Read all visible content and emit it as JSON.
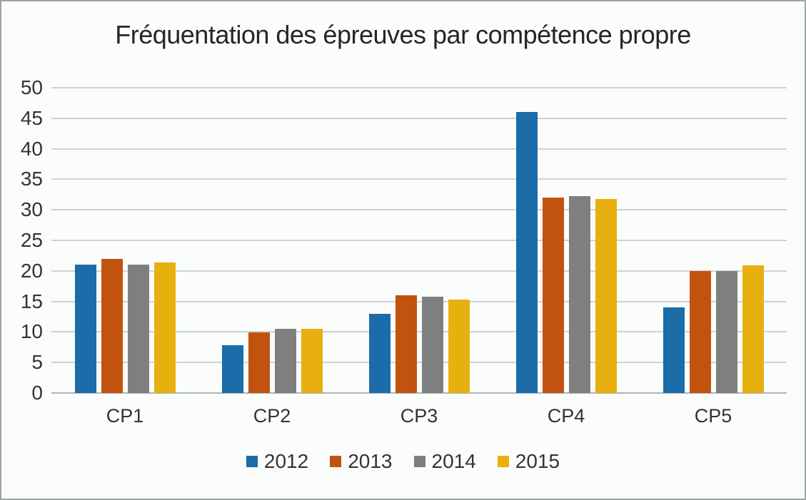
{
  "frame": {
    "background_color": "#fbfdfc",
    "border_color": "#9ea4a4"
  },
  "chart_data": {
    "type": "bar",
    "title": "Fréquentation des épreuves par compétence propre",
    "categories": [
      "CP1",
      "CP2",
      "CP3",
      "CP4",
      "CP5"
    ],
    "series": [
      {
        "name": "2012",
        "color": "#1b6ca8",
        "values": [
          21,
          7.8,
          13,
          46,
          14
        ]
      },
      {
        "name": "2013",
        "color": "#c1530e",
        "values": [
          22,
          9.9,
          16,
          32,
          20
        ]
      },
      {
        "name": "2014",
        "color": "#7f7f7f",
        "values": [
          21,
          10.5,
          15.8,
          32.2,
          20
        ]
      },
      {
        "name": "2015",
        "color": "#e8b00f",
        "values": [
          21.4,
          10.5,
          15.3,
          31.8,
          20.9
        ]
      }
    ],
    "xlabel": "",
    "ylabel": "",
    "ylim": [
      0,
      50
    ],
    "ytick_step": 5,
    "yticks": [
      0,
      5,
      10,
      15,
      20,
      25,
      30,
      35,
      40,
      45,
      50
    ],
    "grid": true,
    "gridline_color": "#cdd3d4",
    "baseline_color": "#adb4b6",
    "legend_position": "bottom"
  }
}
